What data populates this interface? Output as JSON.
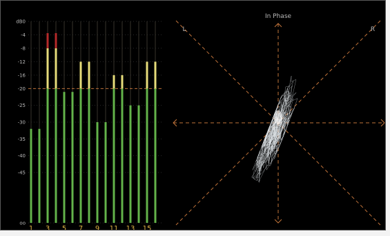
{
  "meter": {
    "scale_labels": [
      "dB0",
      "-4",
      "-8",
      "-12",
      "-16",
      "-20",
      "-25",
      "-30",
      "-35",
      "-40",
      "-45",
      "oo"
    ],
    "scale_db": [
      0,
      -4,
      -8,
      -12,
      -16,
      -20,
      -25,
      -30,
      -35,
      -40,
      -45,
      -60
    ],
    "channel_labels": [
      "1",
      "3",
      "5",
      "7",
      "9",
      "11",
      "13",
      "15"
    ],
    "channel_levels_db": [
      -32,
      -32,
      -8,
      -8,
      -21,
      -21,
      -12,
      -12,
      -30,
      -30,
      -16,
      -16,
      -25,
      -25,
      -12,
      -12
    ],
    "channel_peaks_db": [
      -32,
      -32,
      -3.5,
      -3.5,
      -21,
      -21,
      -12,
      -12,
      -30,
      -30,
      -16,
      -16,
      -25,
      -25,
      -12,
      -12
    ],
    "reference_level_db": -20,
    "zones": [
      {
        "name": "green",
        "max_db": -20,
        "color": "#63b34a"
      },
      {
        "name": "yellow",
        "max_db": -8,
        "color": "#e6dc7a"
      },
      {
        "name": "red",
        "max_db": 0,
        "color": "#b52a2a"
      }
    ]
  },
  "scope": {
    "top_label": "In Phase",
    "left_label": "L",
    "right_label": "R"
  },
  "colors": {
    "background": "#000000",
    "dashed_lines": "#c1733a",
    "grid_lines": "#39332c",
    "trace": "#e8ecf0",
    "label_text": "#b8b8b8",
    "channel_text": "#e0b347"
  }
}
